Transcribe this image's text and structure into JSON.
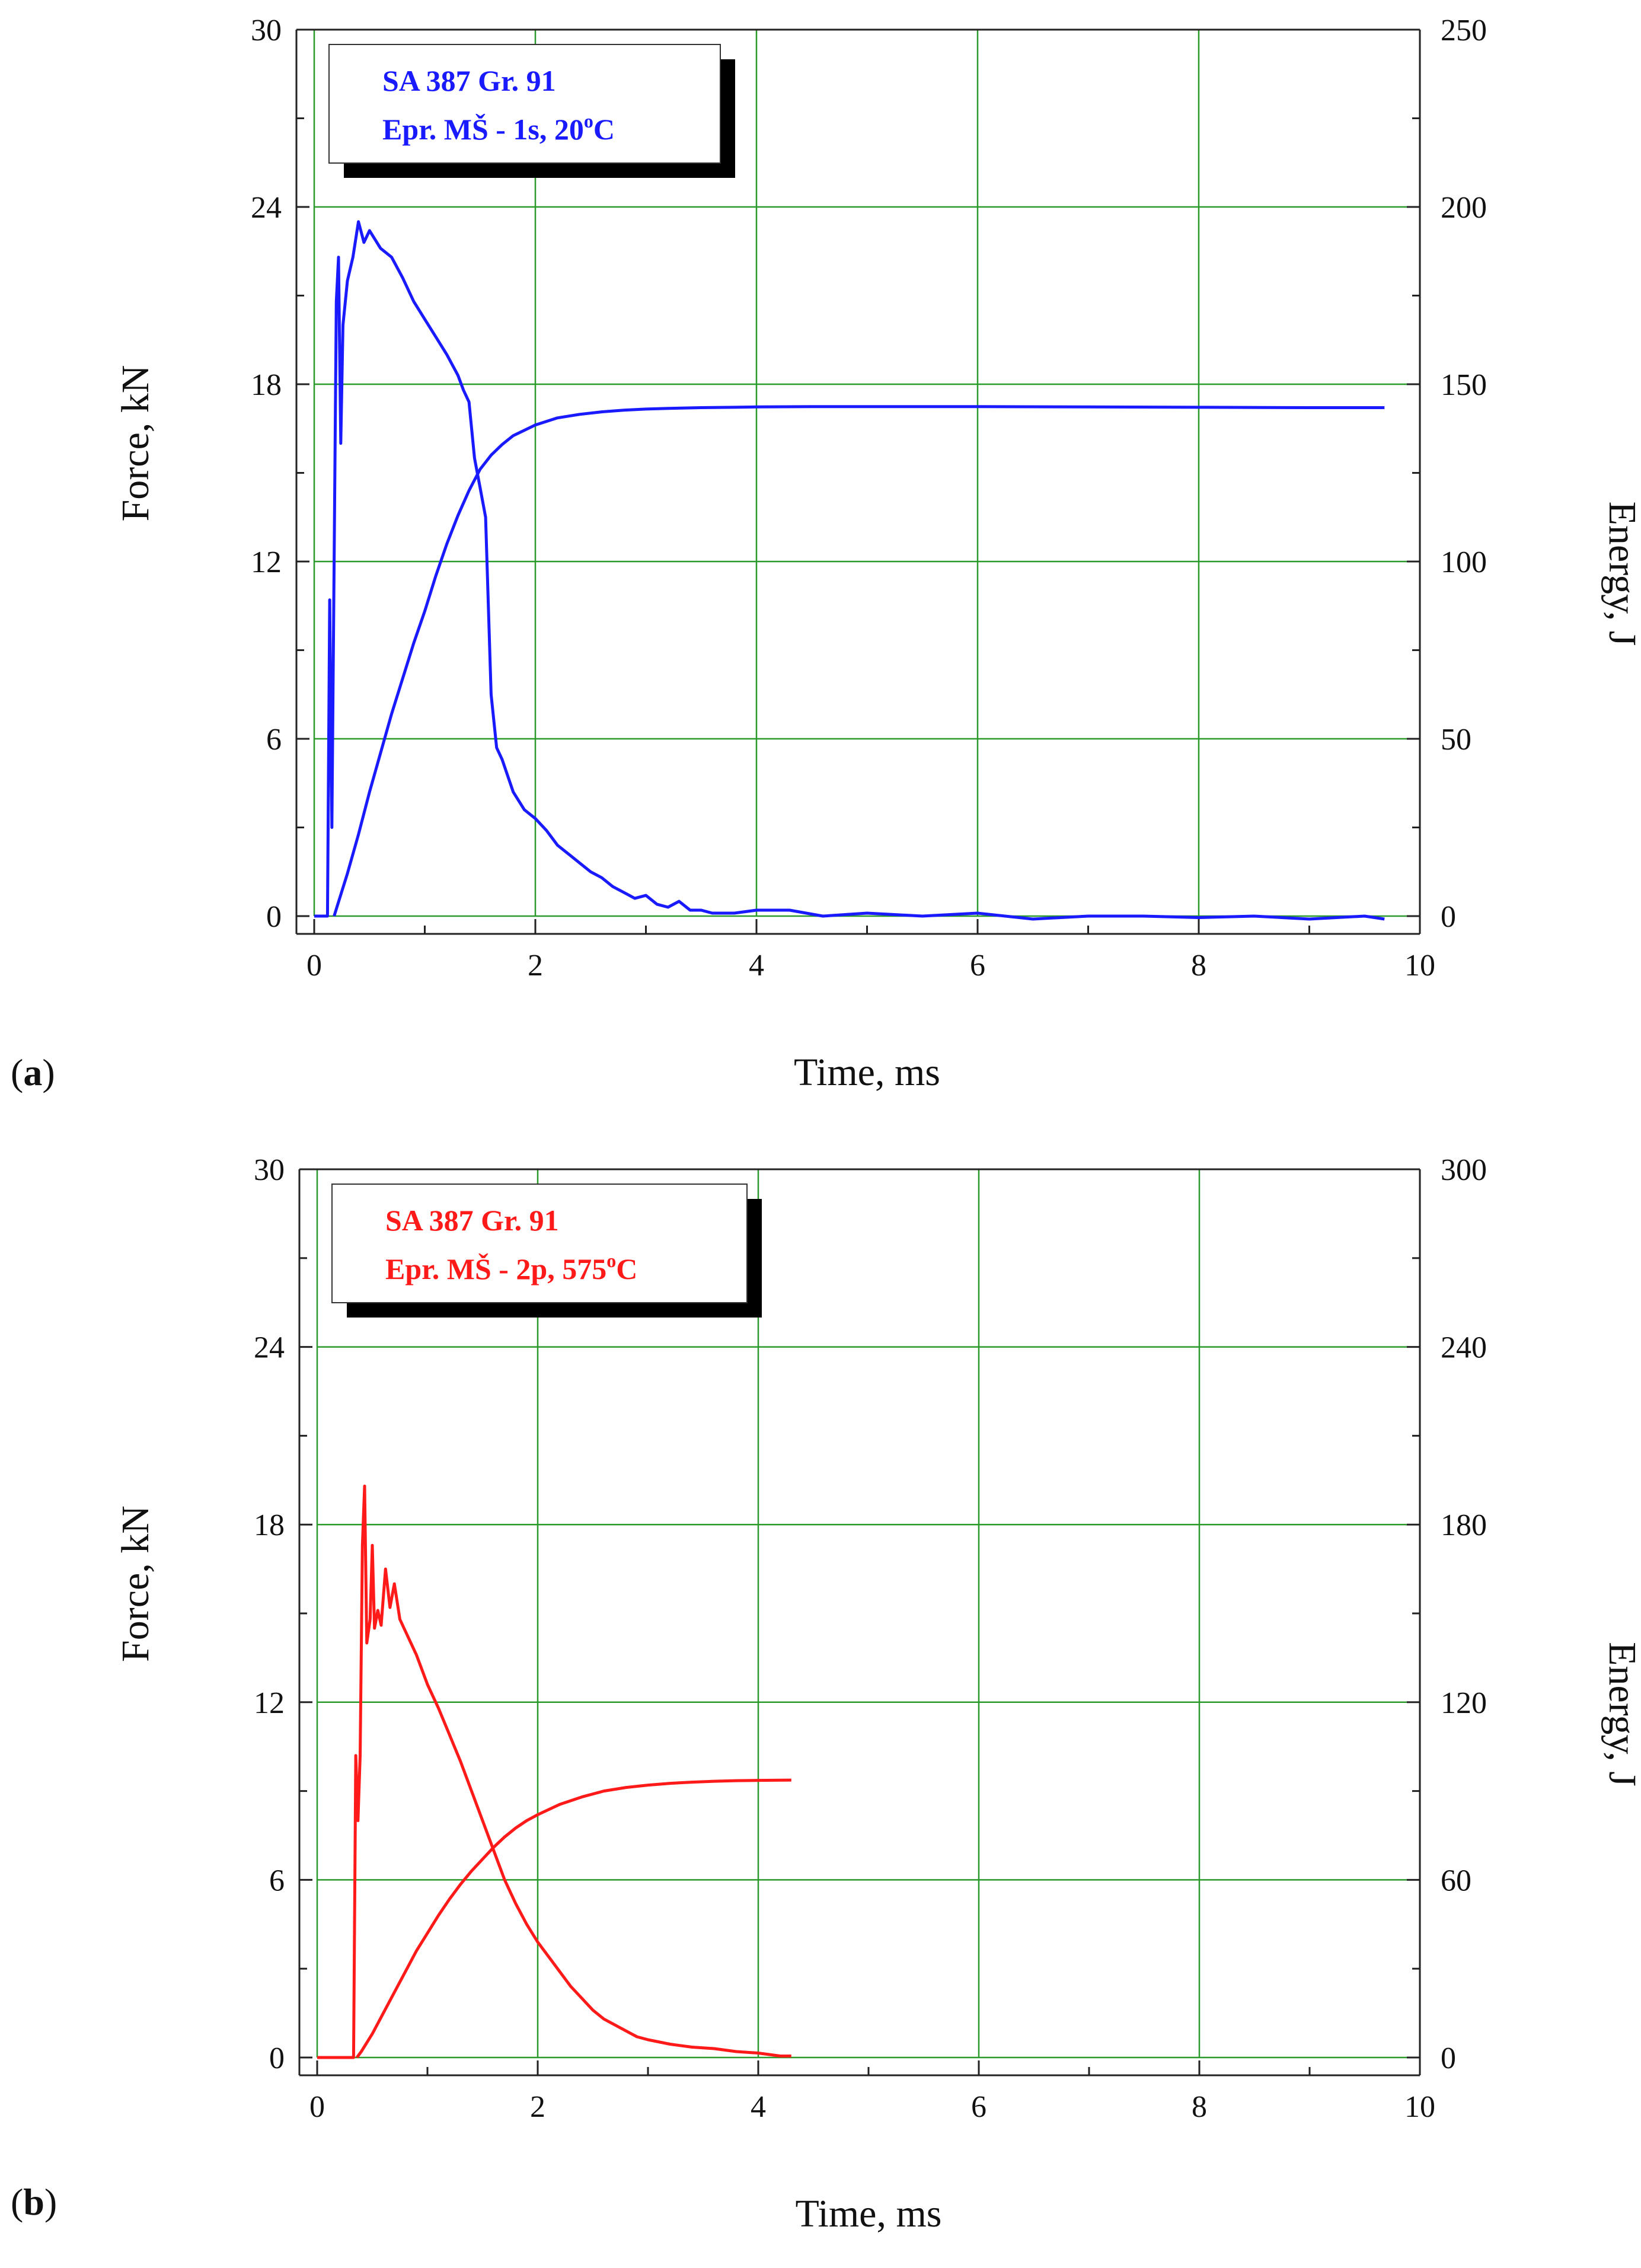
{
  "chart_data": [
    {
      "panel_label": "a",
      "type": "line",
      "xlabel": "Time, ms",
      "ylabel": "Force, kN",
      "y2label": "Energy, J",
      "xlim": [
        0,
        10
      ],
      "ylim": [
        0,
        30
      ],
      "y2lim": [
        0,
        250
      ],
      "xticks": [
        0,
        2,
        4,
        6,
        8,
        10
      ],
      "yticks": [
        0,
        6,
        12,
        18,
        24,
        30
      ],
      "y2ticks": [
        0,
        50,
        100,
        150,
        200,
        250
      ],
      "grid": true,
      "color": "#1a1aff",
      "legend": {
        "line1": "SA 387 Gr. 91",
        "line2_main": "Epr. MŠ - 1s,  20",
        "line2_sup": "o",
        "line2_end": "C",
        "placement": "top-left"
      },
      "series": [
        {
          "name": "Force",
          "axis": "left",
          "x": [
            0,
            0.12,
            0.14,
            0.16,
            0.2,
            0.22,
            0.24,
            0.26,
            0.3,
            0.35,
            0.4,
            0.45,
            0.5,
            0.6,
            0.7,
            0.8,
            0.9,
            1.0,
            1.1,
            1.2,
            1.3,
            1.35,
            1.4,
            1.45,
            1.5,
            1.55,
            1.6,
            1.65,
            1.7,
            1.8,
            1.9,
            2.0,
            2.1,
            2.2,
            2.3,
            2.4,
            2.5,
            2.6,
            2.7,
            2.8,
            2.9,
            3.0,
            3.1,
            3.2,
            3.3,
            3.4,
            3.5,
            3.6,
            3.8,
            4.0,
            4.3,
            4.6,
            5.0,
            5.5,
            6.0,
            6.5,
            7.0,
            7.5,
            8.0,
            8.5,
            9.0,
            9.5,
            9.68
          ],
          "values": [
            0,
            0,
            10.7,
            3.0,
            20.8,
            22.3,
            16.0,
            20.0,
            21.5,
            22.3,
            23.5,
            22.8,
            23.2,
            22.6,
            22.3,
            21.6,
            20.8,
            20.2,
            19.6,
            19.0,
            18.3,
            17.8,
            17.4,
            15.5,
            14.5,
            13.5,
            7.5,
            5.7,
            5.3,
            4.2,
            3.6,
            3.3,
            2.9,
            2.4,
            2.1,
            1.8,
            1.5,
            1.3,
            1.0,
            0.8,
            0.6,
            0.7,
            0.4,
            0.3,
            0.5,
            0.2,
            0.2,
            0.1,
            0.1,
            0.2,
            0.2,
            0,
            0.1,
            0,
            0.1,
            -0.1,
            0,
            0,
            -0.05,
            0,
            -0.1,
            0,
            -0.1
          ]
        },
        {
          "name": "Energy",
          "axis": "right",
          "x": [
            0.18,
            0.2,
            0.3,
            0.4,
            0.5,
            0.6,
            0.7,
            0.8,
            0.9,
            1.0,
            1.1,
            1.2,
            1.3,
            1.4,
            1.5,
            1.6,
            1.7,
            1.8,
            1.9,
            2.0,
            2.2,
            2.4,
            2.6,
            2.8,
            3.0,
            3.2,
            3.5,
            3.8,
            4.0,
            4.5,
            5.0,
            6.0,
            7.0,
            8.0,
            9.0,
            9.68
          ],
          "values": [
            0,
            2,
            12,
            23,
            35,
            46,
            57,
            67,
            77,
            86,
            96,
            105,
            113,
            120,
            126,
            130,
            133,
            135.5,
            137,
            138.5,
            140.5,
            141.5,
            142.2,
            142.7,
            143,
            143.2,
            143.4,
            143.5,
            143.6,
            143.7,
            143.7,
            143.7,
            143.6,
            143.5,
            143.4,
            143.4
          ]
        }
      ]
    },
    {
      "panel_label": "b",
      "type": "line",
      "xlabel": "Time, ms",
      "ylabel": "Force, kN",
      "y2label": "Energy, J",
      "xlim": [
        0,
        10
      ],
      "ylim": [
        0,
        30
      ],
      "y2lim": [
        0,
        300
      ],
      "xticks": [
        0,
        2,
        4,
        6,
        8,
        10
      ],
      "yticks": [
        0,
        6,
        12,
        18,
        24,
        30
      ],
      "y2ticks": [
        0,
        60,
        120,
        180,
        240,
        300
      ],
      "grid": true,
      "color": "#ff1a1a",
      "legend": {
        "line1": "SA 387 Gr. 91",
        "line2_main": "Epr. MŠ - 2p,  575",
        "line2_sup": "o",
        "line2_end": "C",
        "placement": "top-left"
      },
      "series": [
        {
          "name": "Force",
          "axis": "left",
          "x": [
            0,
            0.33,
            0.35,
            0.37,
            0.39,
            0.41,
            0.43,
            0.45,
            0.48,
            0.5,
            0.52,
            0.55,
            0.58,
            0.62,
            0.66,
            0.7,
            0.75,
            0.8,
            0.9,
            1.0,
            1.1,
            1.2,
            1.3,
            1.4,
            1.5,
            1.6,
            1.7,
            1.8,
            1.9,
            2.0,
            2.1,
            2.2,
            2.3,
            2.4,
            2.5,
            2.6,
            2.7,
            2.8,
            2.9,
            3.0,
            3.2,
            3.4,
            3.6,
            3.8,
            4.0,
            4.2,
            4.3
          ],
          "values": [
            0,
            0,
            10.2,
            8.0,
            10.2,
            17.3,
            19.3,
            14.0,
            14.8,
            17.3,
            14.5,
            15.1,
            14.6,
            16.5,
            15.2,
            16.0,
            14.8,
            14.4,
            13.6,
            12.6,
            11.8,
            10.9,
            10.0,
            9.0,
            8.0,
            7.0,
            6.0,
            5.2,
            4.5,
            3.9,
            3.4,
            2.9,
            2.4,
            2.0,
            1.6,
            1.3,
            1.1,
            0.9,
            0.7,
            0.6,
            0.45,
            0.35,
            0.3,
            0.2,
            0.15,
            0.05,
            0.05
          ]
        },
        {
          "name": "Energy",
          "axis": "right",
          "x": [
            0.36,
            0.4,
            0.5,
            0.6,
            0.7,
            0.8,
            0.9,
            1.0,
            1.1,
            1.2,
            1.3,
            1.4,
            1.5,
            1.6,
            1.7,
            1.8,
            1.9,
            2.0,
            2.2,
            2.4,
            2.6,
            2.8,
            3.0,
            3.2,
            3.4,
            3.6,
            3.8,
            4.0,
            4.3
          ],
          "values": [
            0,
            2,
            8,
            15,
            22,
            29,
            36,
            42,
            48,
            53.5,
            58.5,
            63,
            67,
            71,
            74.5,
            77.5,
            80,
            82,
            85.5,
            88,
            90,
            91.2,
            92,
            92.6,
            93,
            93.3,
            93.5,
            93.6,
            93.7
          ]
        }
      ]
    }
  ]
}
